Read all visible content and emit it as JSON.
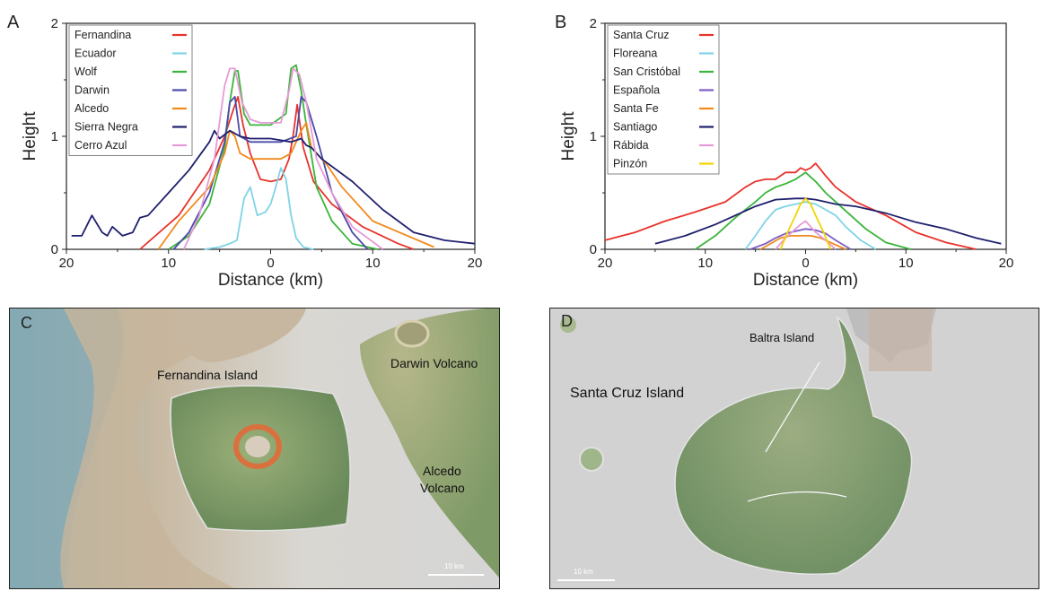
{
  "panels": {
    "a_letter": "A",
    "b_letter": "B",
    "c_letter": "C",
    "d_letter": "D"
  },
  "colors": {
    "red": "#e8322b",
    "cyan": "#7fd3e6",
    "green": "#3bb43b",
    "purple": "#7b5cc4",
    "orange": "#f28a1e",
    "navy": "#1f1f6e",
    "pink": "#e59ad6",
    "yellow": "#f2d400"
  },
  "chart_data": [
    {
      "type": "line",
      "panel": "A",
      "xlabel": "Distance (km)",
      "ylabel": "Height",
      "xlim": [
        20,
        -20
      ],
      "ylim": [
        0,
        2
      ],
      "xticks": [
        "20",
        "10",
        "0",
        "10",
        "20"
      ],
      "yticks": [
        "0",
        "1",
        "2"
      ],
      "legend_position": "top-left",
      "series": [
        {
          "name": "Fernandina",
          "color": "#e8322b",
          "x": [
            12.8,
            9,
            6,
            4.5,
            3.6,
            3.2,
            2.7,
            2,
            1,
            0,
            -1,
            -1.8,
            -2.2,
            -2.6,
            -3.2,
            -4.2,
            -6,
            -9,
            -12.5,
            -14
          ],
          "y": [
            0,
            0.3,
            0.7,
            1.0,
            1.25,
            1.35,
            1.1,
            0.85,
            0.62,
            0.6,
            0.62,
            0.8,
            1.0,
            1.28,
            0.9,
            0.6,
            0.4,
            0.2,
            0.05,
            0
          ]
        },
        {
          "name": "Ecuador",
          "color": "#7fd3e6",
          "x": [
            6.5,
            5,
            4,
            3.3,
            2.6,
            2,
            1.3,
            0.5,
            0,
            -0.5,
            -1,
            -1.5,
            -2,
            -2.5,
            -3.2,
            -4.2
          ],
          "y": [
            0,
            0.02,
            0.05,
            0.08,
            0.45,
            0.55,
            0.3,
            0.33,
            0.4,
            0.55,
            0.72,
            0.62,
            0.3,
            0.1,
            0.02,
            0
          ]
        },
        {
          "name": "Wolf",
          "color": "#3bb43b",
          "x": [
            10,
            8,
            6,
            4.5,
            4,
            3.5,
            3.2,
            2.6,
            2,
            1.5,
            0,
            -1.5,
            -2,
            -2.5,
            -3,
            -3.5,
            -4.5,
            -6,
            -8,
            -10.5
          ],
          "y": [
            0,
            0.12,
            0.4,
            0.9,
            1.3,
            1.58,
            1.58,
            1.2,
            1.1,
            1.1,
            1.1,
            1.2,
            1.6,
            1.63,
            1.4,
            1.1,
            0.55,
            0.25,
            0.05,
            0
          ]
        },
        {
          "name": "Darwin",
          "color": "#4a4aa8",
          "x": [
            9.5,
            8,
            6,
            4.5,
            4,
            3.5,
            3,
            2,
            1,
            0,
            -1,
            -2.5,
            -3,
            -3.5,
            -4.5,
            -6,
            -8,
            -9.5
          ],
          "y": [
            0,
            0.15,
            0.5,
            0.95,
            1.3,
            1.35,
            1.0,
            0.95,
            0.95,
            0.95,
            0.95,
            1.0,
            1.35,
            1.3,
            1.0,
            0.5,
            0.15,
            0
          ]
        },
        {
          "name": "Alcedo",
          "color": "#f28a1e",
          "x": [
            11,
            9,
            6,
            4.5,
            4,
            3.5,
            3,
            2,
            0,
            -1,
            -2,
            -3,
            -3.5,
            -4,
            -5.5,
            -7,
            -10,
            -16
          ],
          "y": [
            0,
            0.25,
            0.55,
            0.85,
            1.05,
            1.0,
            0.85,
            0.8,
            0.8,
            0.8,
            0.85,
            1.05,
            1.12,
            0.9,
            0.75,
            0.55,
            0.25,
            0.02
          ]
        },
        {
          "name": "Sierra Negra",
          "color": "#1f1f6e",
          "x": [
            19.5,
            18.5,
            17.5,
            16.5,
            16,
            15.5,
            14.5,
            13.5,
            12.8,
            12,
            10,
            8,
            6,
            5.5,
            5,
            4,
            3,
            2,
            0,
            -2,
            -3,
            -3.5,
            -4,
            -5,
            -8,
            -11,
            -14,
            -17,
            -20
          ],
          "y": [
            0.12,
            0.12,
            0.3,
            0.15,
            0.12,
            0.2,
            0.12,
            0.15,
            0.28,
            0.3,
            0.5,
            0.7,
            0.95,
            1.05,
            0.98,
            1.05,
            1.0,
            0.98,
            0.98,
            0.95,
            0.98,
            0.92,
            0.9,
            0.8,
            0.6,
            0.35,
            0.15,
            0.08,
            0.05
          ]
        },
        {
          "name": "Cerro Azul",
          "color": "#e59ad6",
          "x": [
            8.5,
            7,
            5.5,
            4.5,
            4,
            3.5,
            2.8,
            2,
            1,
            0,
            -1,
            -1.8,
            -2.2,
            -2.8,
            -3.5,
            -4.5,
            -6,
            -8,
            -11
          ],
          "y": [
            0,
            0.3,
            0.8,
            1.45,
            1.6,
            1.6,
            1.3,
            1.15,
            1.12,
            1.12,
            1.12,
            1.4,
            1.6,
            1.55,
            1.3,
            0.8,
            0.5,
            0.2,
            0
          ]
        }
      ]
    },
    {
      "type": "line",
      "panel": "B",
      "xlabel": "Distance (km)",
      "ylabel": "Height",
      "xlim": [
        20,
        -20
      ],
      "ylim": [
        0,
        2
      ],
      "xticks": [
        "20",
        "10",
        "0",
        "10",
        "20"
      ],
      "yticks": [
        "0",
        "1",
        "2"
      ],
      "legend_position": "top-left",
      "series": [
        {
          "name": "Santa Cruz",
          "color": "#e8322b",
          "x": [
            20,
            17,
            14,
            11,
            8,
            6,
            5,
            4,
            3,
            2,
            1,
            0.5,
            0,
            -0.5,
            -1,
            -2,
            -3,
            -5,
            -8,
            -11,
            -14,
            -17
          ],
          "y": [
            0.08,
            0.15,
            0.25,
            0.33,
            0.42,
            0.55,
            0.6,
            0.62,
            0.62,
            0.68,
            0.68,
            0.72,
            0.7,
            0.72,
            0.76,
            0.65,
            0.55,
            0.42,
            0.3,
            0.15,
            0.06,
            0
          ]
        },
        {
          "name": "Floreana",
          "color": "#7fd3e6",
          "x": [
            6,
            5,
            4,
            3,
            2,
            1,
            0,
            -1,
            -2,
            -3,
            -4,
            -5.5,
            -7
          ],
          "y": [
            0,
            0.12,
            0.25,
            0.35,
            0.38,
            0.4,
            0.42,
            0.4,
            0.35,
            0.3,
            0.2,
            0.08,
            0
          ]
        },
        {
          "name": "San Cristóbal",
          "color": "#3bb43b",
          "x": [
            11,
            9,
            7,
            5,
            4,
            3,
            2,
            1,
            0,
            -1,
            -2,
            -3,
            -4.5,
            -6,
            -8,
            -10.5
          ],
          "y": [
            0,
            0.12,
            0.28,
            0.42,
            0.5,
            0.55,
            0.58,
            0.62,
            0.68,
            0.6,
            0.5,
            0.42,
            0.3,
            0.18,
            0.06,
            0
          ]
        },
        {
          "name": "Española",
          "color": "#7b5cc4",
          "x": [
            5.5,
            4,
            3,
            2,
            1,
            0,
            -1,
            -2,
            -3,
            -4.5
          ],
          "y": [
            0,
            0.05,
            0.1,
            0.14,
            0.16,
            0.18,
            0.17,
            0.14,
            0.08,
            0
          ]
        },
        {
          "name": "Santa Fe",
          "color": "#f28a1e",
          "x": [
            4.5,
            3.5,
            2.5,
            1.5,
            0.5,
            -0.5,
            -1.5,
            -2.5,
            -4
          ],
          "y": [
            0,
            0.05,
            0.1,
            0.12,
            0.12,
            0.12,
            0.1,
            0.06,
            0
          ]
        },
        {
          "name": "Santiago",
          "color": "#1f1f6e",
          "x": [
            15,
            12,
            9,
            7,
            5,
            3,
            1,
            0,
            -1,
            -2,
            -3,
            -5,
            -8,
            -11,
            -14,
            -17,
            -19.5
          ],
          "y": [
            0.05,
            0.12,
            0.22,
            0.3,
            0.38,
            0.44,
            0.45,
            0.45,
            0.44,
            0.42,
            0.4,
            0.38,
            0.32,
            0.24,
            0.18,
            0.1,
            0.05
          ]
        },
        {
          "name": "Rábida",
          "color": "#e59ad6",
          "x": [
            3,
            2,
            1,
            0.5,
            0,
            -0.5,
            -1,
            -2,
            -3
          ],
          "y": [
            0,
            0.1,
            0.18,
            0.22,
            0.25,
            0.2,
            0.15,
            0.08,
            0
          ]
        },
        {
          "name": "Pinzón",
          "color": "#f2d400",
          "x": [
            2.5,
            1.8,
            1,
            0.5,
            0,
            -0.5,
            -1,
            -1.8,
            -2.5
          ],
          "y": [
            0,
            0.15,
            0.3,
            0.4,
            0.45,
            0.4,
            0.3,
            0.15,
            0
          ]
        }
      ]
    }
  ],
  "maps": {
    "c": {
      "fernandina_label": "Fernandina Island",
      "darwin_label": "Darwin Volcano",
      "alcedo_label_1": "Alcedo",
      "alcedo_label_2": "Volcano",
      "scale_label": "10 km"
    },
    "d": {
      "baltra_label": "Baltra Island",
      "santacruz_label": "Santa Cruz Island",
      "scale_label": "10 km"
    }
  }
}
